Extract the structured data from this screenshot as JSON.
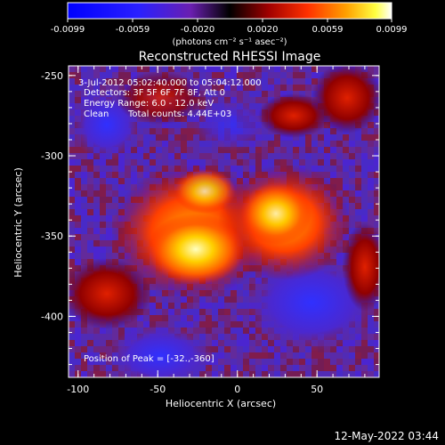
{
  "colorbar": {
    "tick_labels": [
      "-0.0099",
      "-0.0059",
      "-0.0020",
      "0.0020",
      "0.0059",
      "0.0099"
    ],
    "unit_label": "(photons cm⁻² s⁻¹ asec⁻²)",
    "range": [
      -0.0099,
      0.0099
    ]
  },
  "plot": {
    "title": "Reconstructed RHESSI Image",
    "xlabel": "Heliocentric X (arcsec)",
    "ylabel": "Heliocentric Y (arcsec)",
    "x_ticks": [
      "-100",
      "-50",
      "0",
      "50"
    ],
    "x_tick_values": [
      -100,
      -50,
      0,
      50
    ],
    "y_ticks": [
      "-250",
      "-300",
      "-350",
      "-400"
    ],
    "y_tick_values": [
      -250,
      -300,
      -350,
      -400
    ],
    "xlim": [
      -106,
      89
    ],
    "ylim": [
      -438,
      -244
    ],
    "annotations": {
      "time": "3-Jul-2012 05:02:40.000 to 05:04:12.000",
      "detectors": "Detectors: 3F 5F 6F 7F 8F, Att 0",
      "energy": "Energy Range: 6.0 - 12.0 keV",
      "method": "Clean",
      "counts": "Total counts: 4.44E+03",
      "peak": "Position of Peak = [-32.,-360]"
    }
  },
  "footer": {
    "timestamp": "12-May-2022 03:44"
  },
  "colors": {
    "background": "#000000",
    "foreground": "#ffffff"
  }
}
